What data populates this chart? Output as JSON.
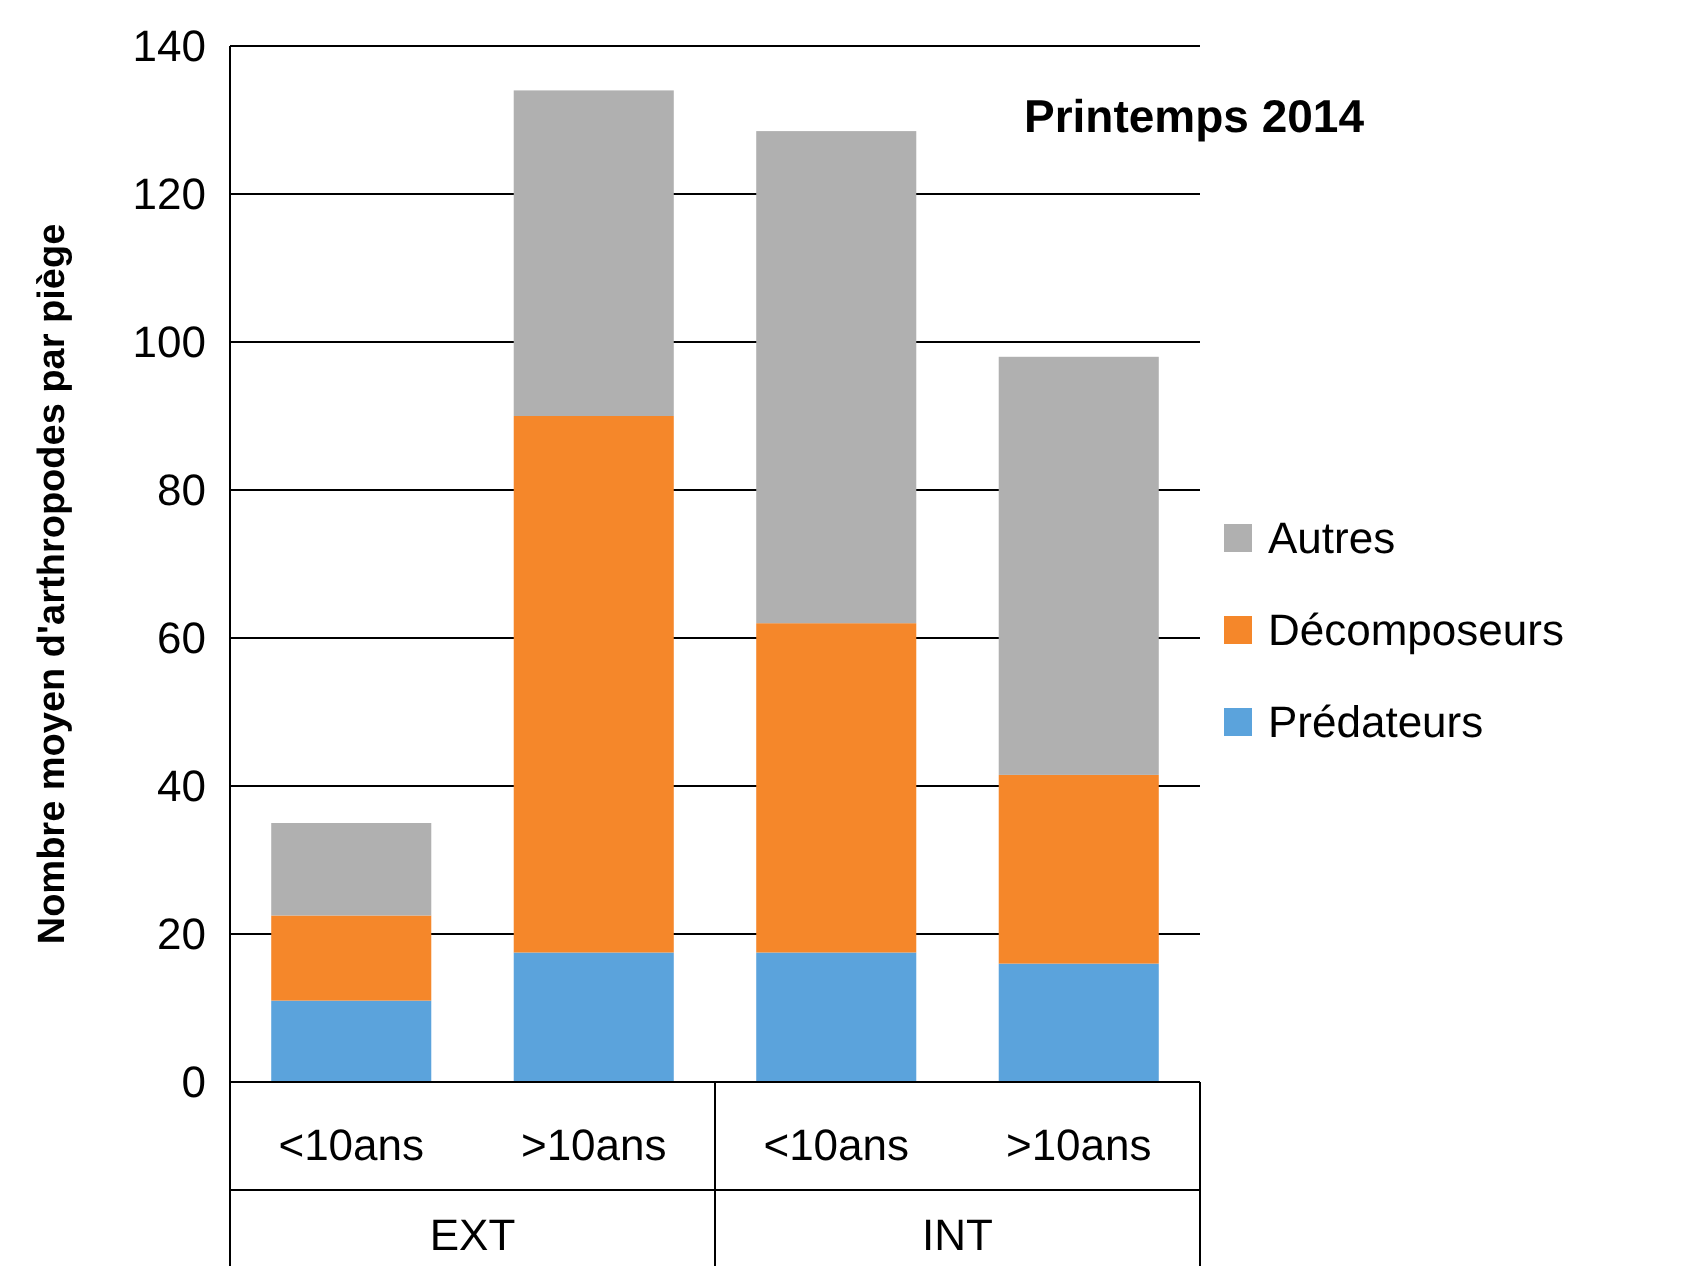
{
  "chart_data": {
    "type": "bar",
    "title": "Printemps 2014",
    "ylabel": "Nombre moyen d'arthropodes par piège",
    "categories": [
      "<10ans",
      ">10ans",
      "<10ans",
      ">10ans"
    ],
    "annotations": [
      "EXT",
      "INT"
    ],
    "stacked": true,
    "series": [
      {
        "name": "Prédateurs",
        "color": "#5ba3dc",
        "values": [
          11,
          17.5,
          17.5,
          16
        ]
      },
      {
        "name": "Décomposeurs",
        "color": "#f5872a",
        "values": [
          11.5,
          72.5,
          44.5,
          25.5
        ]
      },
      {
        "name": "Autres",
        "color": "#b0b0b0",
        "values": [
          12.5,
          44,
          66.5,
          56.5
        ]
      }
    ],
    "ylim": [
      0,
      140
    ],
    "yticks": [
      0,
      20,
      40,
      60,
      80,
      100,
      120,
      140
    ],
    "grid": "y",
    "legend": "right"
  }
}
